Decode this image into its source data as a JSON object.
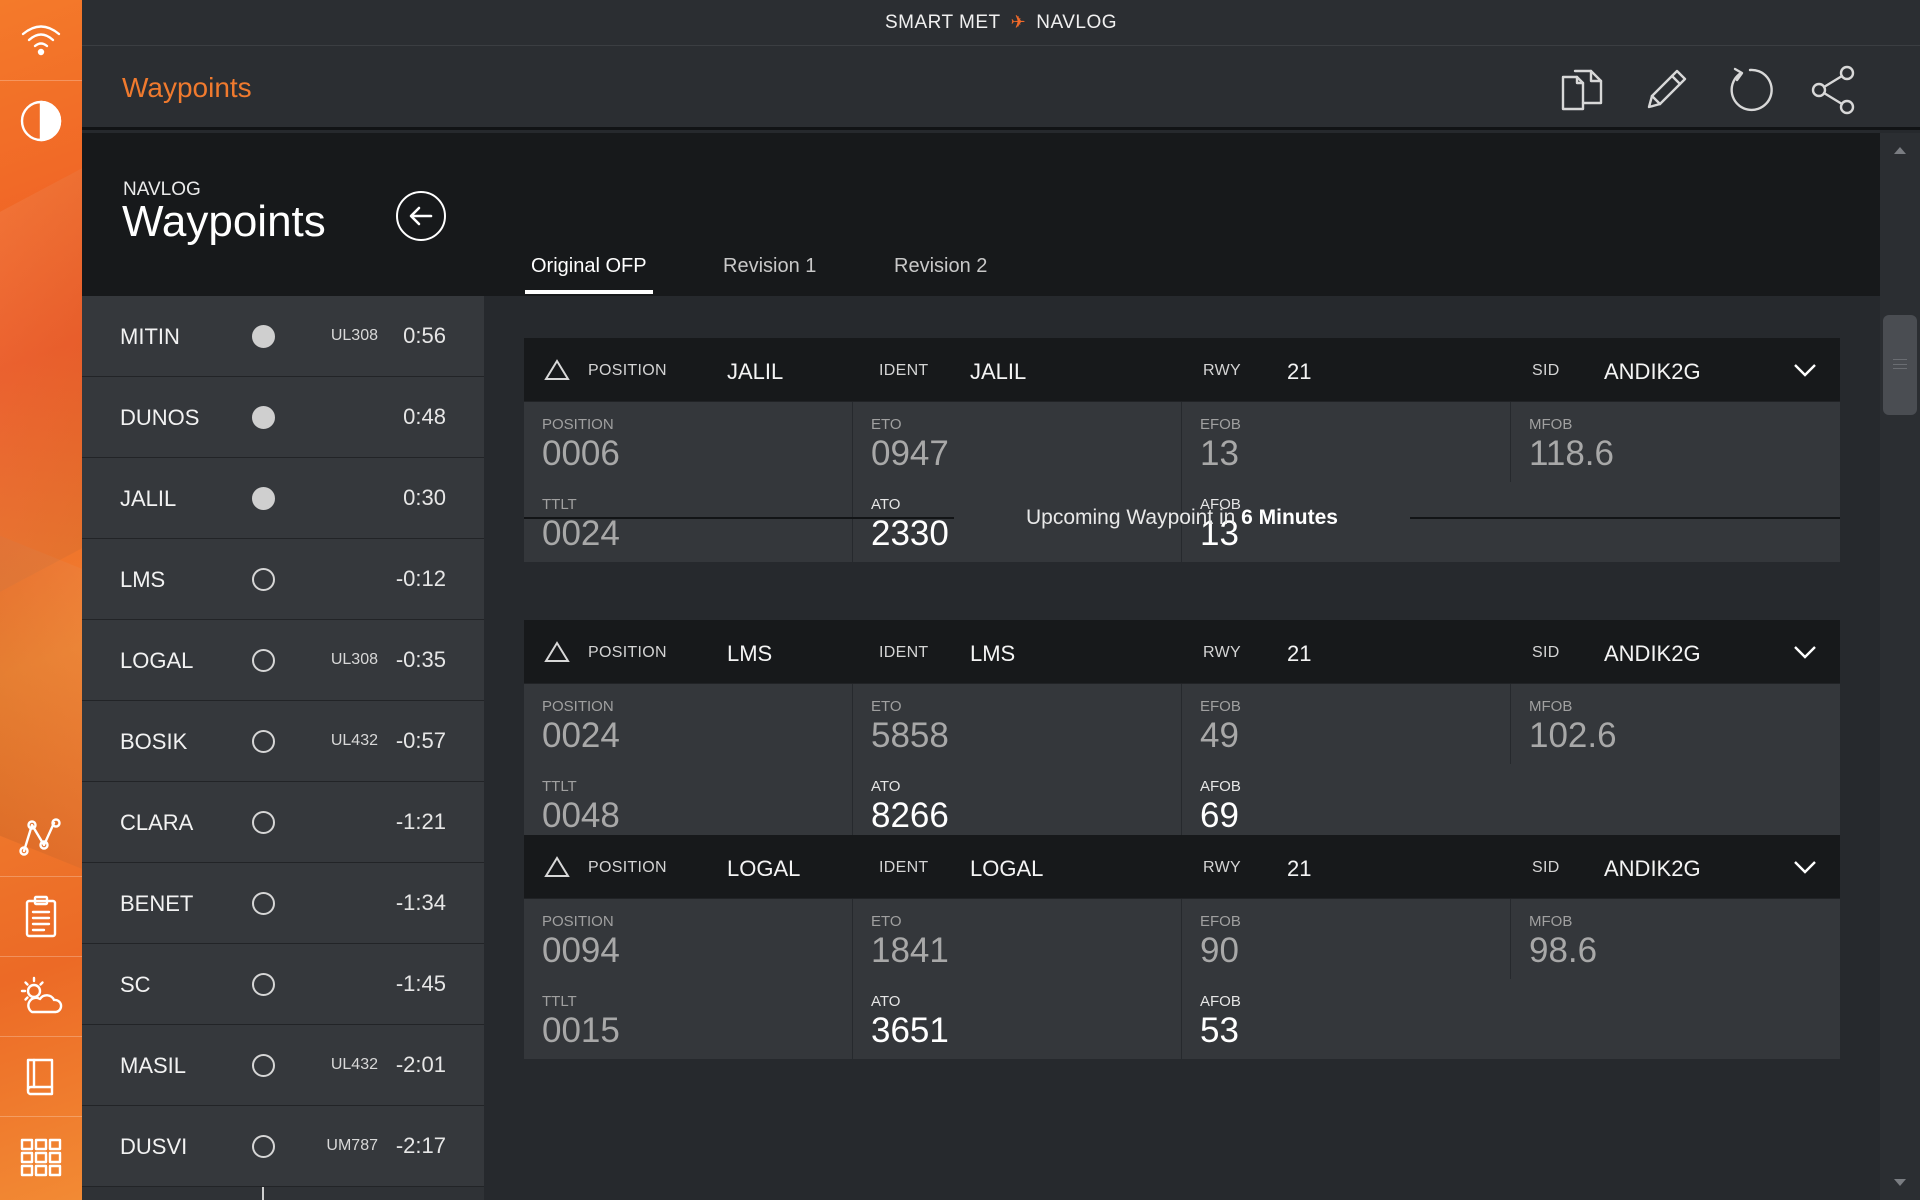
{
  "app": {
    "title_left": "SMART MET",
    "title_right": "NAVLOG",
    "plane_glyph": "✈",
    "accent_color": "#f07a2e"
  },
  "header": {
    "title": "Waypoints",
    "actions": [
      {
        "icon": "copy-icon",
        "label": "Copy"
      },
      {
        "icon": "pencil-icon",
        "label": "Edit"
      },
      {
        "icon": "refresh-icon",
        "label": "Refresh"
      },
      {
        "icon": "share-icon",
        "label": "Share"
      }
    ]
  },
  "rail": {
    "top": [
      "wifi-icon",
      "contrast-icon"
    ],
    "bottom": [
      "route-icon",
      "clipboard-icon",
      "weather-icon",
      "book-icon",
      "grid-icon"
    ]
  },
  "page": {
    "section": "NAVLOG",
    "heading": "Waypoints",
    "back_icon": "back-arrow-icon"
  },
  "tabs": [
    {
      "label": "Original OFP",
      "active": true
    },
    {
      "label": "Revision 1",
      "active": false
    },
    {
      "label": "Revision 2",
      "active": false
    }
  ],
  "waypoints": [
    {
      "name": "MITIN",
      "route": "UL308",
      "time": "0:56",
      "passed": true
    },
    {
      "name": "DUNOS",
      "route": "",
      "time": "0:48",
      "passed": true
    },
    {
      "name": "JALIL",
      "route": "",
      "time": "0:30",
      "passed": true
    },
    {
      "name": "LMS",
      "route": "",
      "time": "-0:12",
      "passed": false
    },
    {
      "name": "LOGAL",
      "route": "UL308",
      "time": "-0:35",
      "passed": false
    },
    {
      "name": "BOSIK",
      "route": "UL432",
      "time": "-0:57",
      "passed": false
    },
    {
      "name": "CLARA",
      "route": "",
      "time": "-1:21",
      "passed": false
    },
    {
      "name": "BENET",
      "route": "",
      "time": "-1:34",
      "passed": false
    },
    {
      "name": "SC",
      "route": "",
      "time": "-1:45",
      "passed": false
    },
    {
      "name": "MASIL",
      "route": "UL432",
      "time": "-2:01",
      "passed": false
    },
    {
      "name": "DUSVI",
      "route": "UM787",
      "time": "-2:17",
      "passed": false
    }
  ],
  "head_labels": {
    "position": "POSITION",
    "ident": "IDENT",
    "rwy": "RWY",
    "sid": "SID"
  },
  "field_labels": {
    "position": "POSITION",
    "eto": "ETO",
    "efob": "EFOB",
    "mfob": "MFOB",
    "ttlt": "TTLT",
    "ato": "ATO",
    "afob": "AFOB"
  },
  "cards": [
    {
      "position": "JALIL",
      "ident": "JALIL",
      "rwy": "21",
      "sid": "ANDIK2G",
      "pos_val": "0006",
      "eto": "0947",
      "efob": "13",
      "mfob": "118.6",
      "ttlt": "0024",
      "ato": "2330",
      "afob": "13"
    },
    {
      "position": "LMS",
      "ident": "LMS",
      "rwy": "21",
      "sid": "ANDIK2G",
      "pos_val": "0024",
      "eto": "5858",
      "efob": "49",
      "mfob": "102.6",
      "ttlt": "0048",
      "ato": "8266",
      "afob": "69"
    },
    {
      "position": "LOGAL",
      "ident": "LOGAL",
      "rwy": "21",
      "sid": "ANDIK2G",
      "pos_val": "0094",
      "eto": "1841",
      "efob": "90",
      "mfob": "98.6",
      "ttlt": "0015",
      "ato": "3651",
      "afob": "53"
    }
  ],
  "upcoming": {
    "prefix": "Upcoming Waypoint in ",
    "value": "6 Minutes"
  }
}
